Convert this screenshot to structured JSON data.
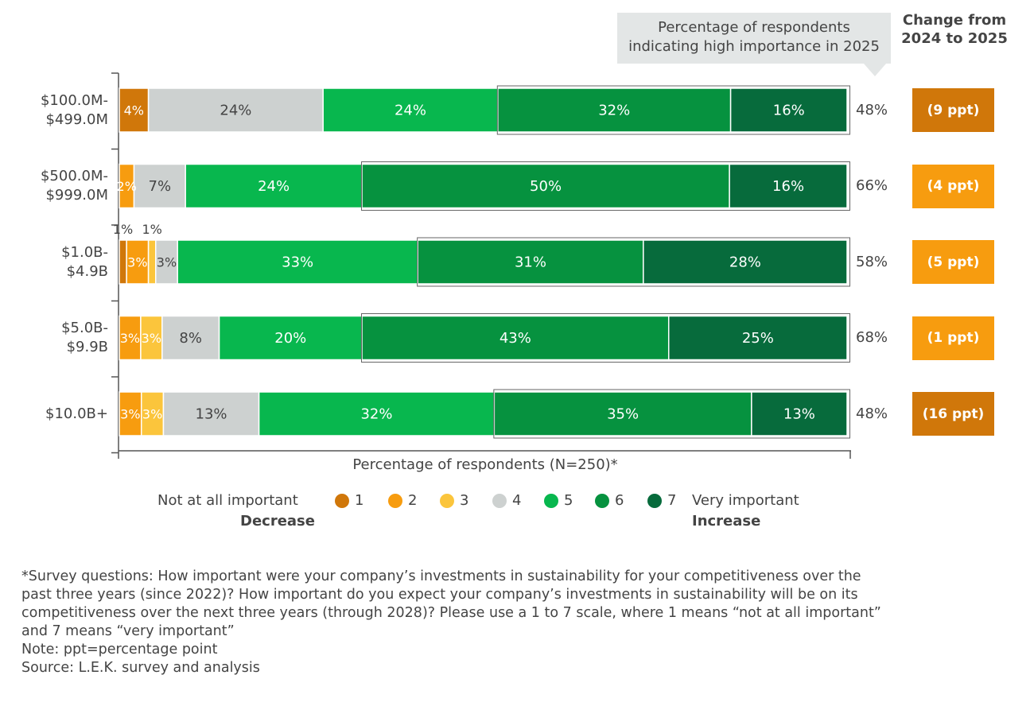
{
  "callout": {
    "line1": "Percentage of respondents",
    "line2": "indicating high importance in 2025"
  },
  "change_header": {
    "line1": "Change from",
    "line2": "2024 to 2025"
  },
  "colors": {
    "1": "#d0770a",
    "2": "#f79c0f",
    "3": "#fbc53c",
    "4": "#cdd1d0",
    "5": "#08b74e",
    "6": "#06923f",
    "7": "#076b3c",
    "decrease_dark": "#d0770a",
    "decrease_light": "#f79c0f"
  },
  "chart_data": {
    "type": "bar",
    "orientation": "horizontal-stacked-100",
    "xlabel": "Percentage of respondents (N=250)*",
    "categories": [
      [
        "$100.0M-",
        "$499.0M"
      ],
      [
        "$500.0M-",
        "$999.0M"
      ],
      [
        "$1.0B-",
        "$4.9B"
      ],
      [
        "$5.0B-",
        "$9.9B"
      ],
      [
        "$10.0B+"
      ]
    ],
    "series": [
      {
        "name": "1",
        "values": [
          4,
          0,
          1,
          0,
          0
        ],
        "labels": [
          "4%",
          "",
          "1%",
          "",
          ""
        ]
      },
      {
        "name": "2",
        "values": [
          0,
          2,
          3,
          3,
          3
        ],
        "labels": [
          "",
          "2%",
          "3%",
          "3%",
          "3%"
        ]
      },
      {
        "name": "3",
        "values": [
          0,
          0,
          1,
          3,
          3
        ],
        "labels": [
          "",
          "",
          "1%",
          "3%",
          "3%"
        ]
      },
      {
        "name": "4",
        "values": [
          24,
          7,
          3,
          8,
          13
        ],
        "labels": [
          "24%",
          "7%",
          "3%",
          "8%",
          "13%"
        ]
      },
      {
        "name": "5",
        "values": [
          24,
          24,
          33,
          20,
          32
        ],
        "labels": [
          "24%",
          "24%",
          "33%",
          "20%",
          "32%"
        ]
      },
      {
        "name": "6",
        "values": [
          32,
          50,
          31,
          43,
          35
        ],
        "labels": [
          "32%",
          "50%",
          "31%",
          "43%",
          "35%"
        ]
      },
      {
        "name": "7",
        "values": [
          16,
          16,
          28,
          25,
          13
        ],
        "labels": [
          "16%",
          "16%",
          "28%",
          "25%",
          "13%"
        ]
      }
    ],
    "high_importance_2025": [
      "48%",
      "66%",
      "58%",
      "68%",
      "48%"
    ],
    "change_2024_to_2025": [
      {
        "label": "(9 ppt)",
        "value": -9
      },
      {
        "label": "(4 ppt)",
        "value": -4
      },
      {
        "label": "(5 ppt)",
        "value": -5
      },
      {
        "label": "(1 ppt)",
        "value": -1
      },
      {
        "label": "(16 ppt)",
        "value": -16
      }
    ]
  },
  "legend": {
    "left_label": "Not at all important",
    "left_sub": "Decrease",
    "right_label": "Very important",
    "right_sub": "Increase",
    "items": [
      "1",
      "2",
      "3",
      "4",
      "5",
      "6",
      "7"
    ]
  },
  "footnote": {
    "line1": "*Survey questions: How important were your company’s investments in sustainability for your competitiveness over the",
    "line2": "past three years (since 2022)? How important do you expect your company’s investments in sustainability will be on its",
    "line3": "competitiveness over the next three years (through 2028)? Please use a 1 to 7 scale, where 1 means “not at all important”",
    "line4": "and 7 means “very important”",
    "line5": "Note: ppt=percentage point",
    "line6": "Source: L.E.K. survey and analysis"
  }
}
